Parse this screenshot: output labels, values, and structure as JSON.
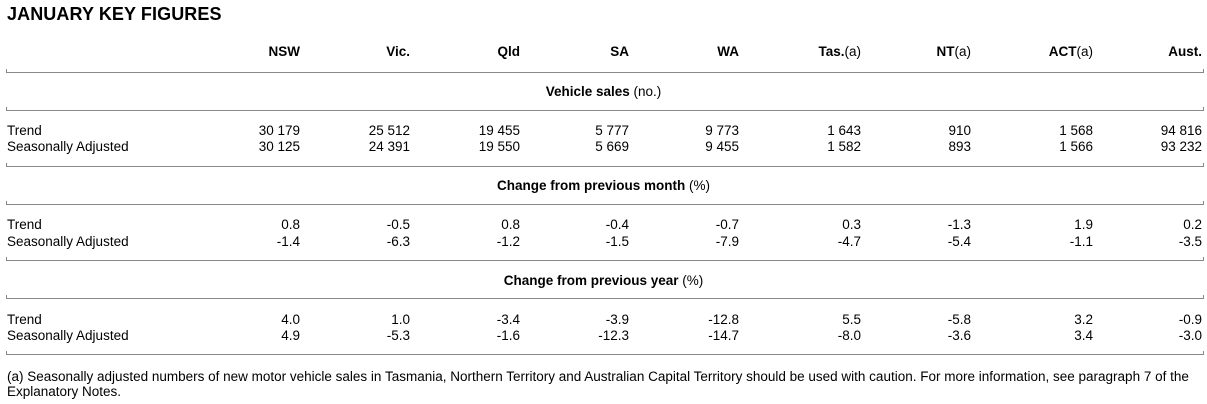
{
  "title": "JANUARY KEY FIGURES",
  "columns": [
    {
      "name": "NSW",
      "suffix": ""
    },
    {
      "name": "Vic.",
      "suffix": ""
    },
    {
      "name": "Qld",
      "suffix": ""
    },
    {
      "name": "SA",
      "suffix": ""
    },
    {
      "name": "WA",
      "suffix": ""
    },
    {
      "name": "Tas.",
      "suffix": "(a)"
    },
    {
      "name": "NT",
      "suffix": "(a)"
    },
    {
      "name": "ACT",
      "suffix": "(a)"
    },
    {
      "name": "Aust.",
      "suffix": ""
    }
  ],
  "sections": [
    {
      "heading": "Vehicle sales",
      "unit": "(no.)",
      "rows": [
        {
          "label": "Trend",
          "values": [
            "30 179",
            "25 512",
            "19 455",
            "5 777",
            "9 773",
            "1 643",
            "910",
            "1 568",
            "94 816"
          ]
        },
        {
          "label": "Seasonally Adjusted",
          "values": [
            "30 125",
            "24 391",
            "19 550",
            "5 669",
            "9 455",
            "1 582",
            "893",
            "1 566",
            "93 232"
          ]
        }
      ]
    },
    {
      "heading": "Change from previous month",
      "unit": "(%)",
      "rows": [
        {
          "label": "Trend",
          "values": [
            "0.8",
            "-0.5",
            "0.8",
            "-0.4",
            "-0.7",
            "0.3",
            "-1.3",
            "1.9",
            "0.2"
          ]
        },
        {
          "label": "Seasonally Adjusted",
          "values": [
            "-1.4",
            "-6.3",
            "-1.2",
            "-1.5",
            "-7.9",
            "-4.7",
            "-5.4",
            "-1.1",
            "-3.5"
          ]
        }
      ]
    },
    {
      "heading": "Change from previous year",
      "unit": "(%)",
      "rows": [
        {
          "label": "Trend",
          "values": [
            "4.0",
            "1.0",
            "-3.4",
            "-3.9",
            "-12.8",
            "5.5",
            "-5.8",
            "3.2",
            "-0.9"
          ]
        },
        {
          "label": "Seasonally Adjusted",
          "values": [
            "4.9",
            "-5.3",
            "-1.6",
            "-12.3",
            "-14.7",
            "-8.0",
            "-3.6",
            "3.4",
            "-3.0"
          ]
        }
      ]
    }
  ],
  "footnote": "(a) Seasonally adjusted numbers of new motor vehicle sales in Tasmania, Northern Territory and Australian Capital Territory should be used with caution. For more information, see paragraph 7 of the Explanatory Notes."
}
